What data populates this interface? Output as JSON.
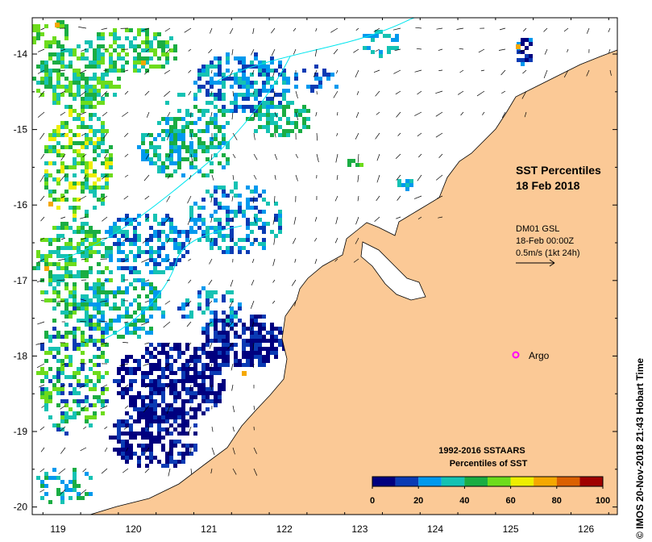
{
  "map": {
    "title_line1": "SST Percentiles",
    "title_line2": "18 Feb 2018",
    "current_note": {
      "line1": "DM01 GSL",
      "line2": "18-Feb 00:00Z",
      "line3": "0.5m/s (1kt 24h)"
    },
    "argo_label": "Argo",
    "credit": "© IMOS 20-Nov-2018 21:43 Hobart Time",
    "x_ticks": [
      {
        "lon": 119,
        "label": "119"
      },
      {
        "lon": 120,
        "label": "120"
      },
      {
        "lon": 121,
        "label": "121"
      },
      {
        "lon": 122,
        "label": "122"
      },
      {
        "lon": 123,
        "label": "123"
      },
      {
        "lon": 124,
        "label": "124"
      },
      {
        "lon": 125,
        "label": "125"
      },
      {
        "lon": 126,
        "label": "126"
      }
    ],
    "y_ticks": [
      {
        "lat": -14,
        "label": "-14"
      },
      {
        "lat": -15,
        "label": "-15"
      },
      {
        "lat": -16,
        "label": "-16"
      },
      {
        "lat": -17,
        "label": "-17"
      },
      {
        "lat": -18,
        "label": "-18"
      },
      {
        "lat": -19,
        "label": "-19"
      },
      {
        "lat": -20,
        "label": "-20"
      }
    ],
    "land_color": "#fbc996",
    "argo_color": "#ff00ff",
    "contour_color": "#00e5ee"
  },
  "legend": {
    "title_line1": "1992-2016 SSTAARS",
    "title_line2": "Percentiles of SST",
    "colors": [
      "#00007f",
      "#0a3bb4",
      "#0099ee",
      "#15c2b3",
      "#1aad43",
      "#6ddc1c",
      "#eeee00",
      "#f5a800",
      "#db6000",
      "#a00000"
    ],
    "ticks": [
      {
        "value": 0,
        "label": "0"
      },
      {
        "value": 20,
        "label": "20"
      },
      {
        "value": 40,
        "label": "40"
      },
      {
        "value": 60,
        "label": "60"
      },
      {
        "value": 80,
        "label": "80"
      },
      {
        "value": 100,
        "label": "100"
      }
    ]
  }
}
